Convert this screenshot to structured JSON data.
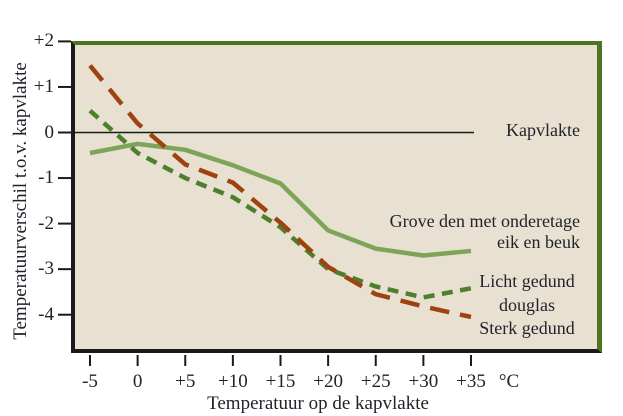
{
  "labels": {
    "kapvlakte": "Kapvlakte",
    "series1_line1": "Grove den met onderetage",
    "series1_line2": "eik en beuk",
    "series2_label": "Licht gedund",
    "shared_word": "douglas",
    "series3_label": "Sterk gedund",
    "x_unit": "°C",
    "x_title": "Temperatuur op de kapvlakte",
    "y_title": "Temperatuurverschil t.o.v. kapvlakte"
  },
  "chart_data": {
    "type": "line",
    "xlabel": "Temperatuur op de kapvlakte",
    "ylabel": "Temperatuurverschil t.o.v. kapvlakte",
    "x_unit_label": "°C",
    "x": [
      -5,
      0,
      5,
      10,
      15,
      20,
      25,
      30,
      35
    ],
    "x_tick_labels": [
      "-5",
      "0",
      "+5",
      "+10",
      "+15",
      "+20",
      "+25",
      "+30",
      "+35"
    ],
    "y_ticks": [
      2,
      1,
      0,
      -1,
      -2,
      -3,
      -4
    ],
    "y_tick_labels": [
      "+2",
      "+1",
      "0",
      "-1",
      "-2",
      "-3",
      "-4"
    ],
    "xlim": [
      -6.6,
      48.2
    ],
    "ylim": [
      -4.85,
      2.0
    ],
    "grid": false,
    "legend_position": "right-inside",
    "reference_line": {
      "value": 0,
      "label": "Kapvlakte"
    },
    "series": [
      {
        "name": "Grove den met onderetage eik en beuk",
        "legend_lines": [
          "Grove den met onderetage",
          "eik en beuk"
        ],
        "line_style": "solid",
        "color": "#7da457",
        "values": [
          -0.45,
          -0.25,
          -0.38,
          -0.72,
          -1.12,
          -2.15,
          -2.55,
          -2.7,
          -2.6
        ]
      },
      {
        "name": "Licht gedund douglas",
        "legend_lines": [
          "Licht gedund",
          "douglas"
        ],
        "line_style": "dashed",
        "color": "#4e7f2c",
        "values": [
          0.48,
          -0.45,
          -1.0,
          -1.42,
          -2.08,
          -3.0,
          -3.38,
          -3.62,
          -3.42
        ]
      },
      {
        "name": "Sterk gedund douglas",
        "legend_lines": [
          "Sterk gedund",
          "douglas"
        ],
        "line_style": "long-dashed",
        "color": "#9e4210",
        "values": [
          1.47,
          0.2,
          -0.7,
          -1.1,
          -1.98,
          -2.95,
          -3.55,
          -3.82,
          -4.05
        ]
      }
    ],
    "plot_bg_color": "#e8e1d1",
    "frame_color": "#4d7420",
    "axis_color": "#1a1a1a",
    "text_color": "#22222c"
  }
}
